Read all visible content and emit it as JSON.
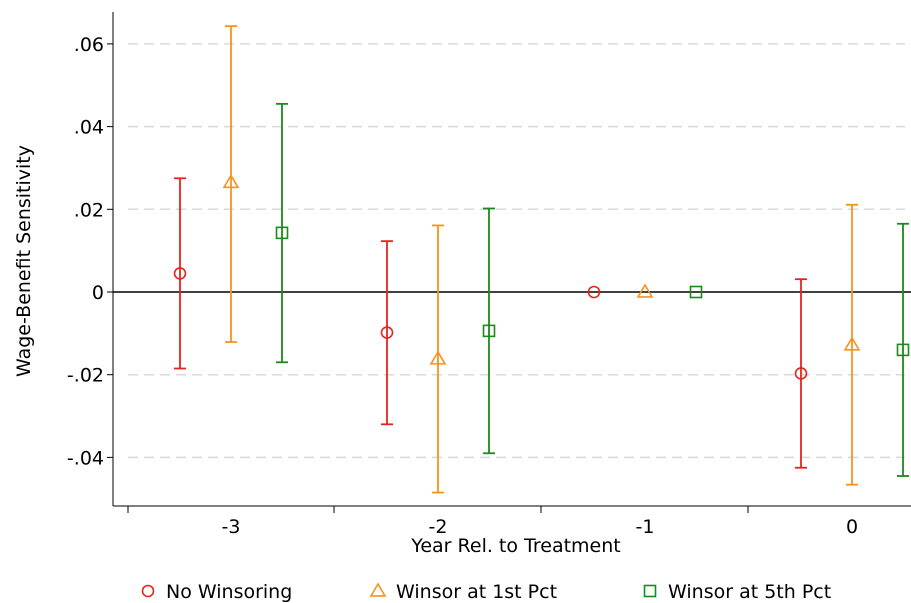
{
  "chart_data": {
    "type": "errorbar",
    "title": "",
    "xlabel": "Year Rel. to Treatment",
    "ylabel": "Wage-Benefit Sensitivity",
    "x_categories": [
      "-3",
      "-2",
      "-1",
      "0"
    ],
    "y_ticks": [
      {
        "value": 0.06,
        "label": ".06"
      },
      {
        "value": 0.04,
        "label": ".04"
      },
      {
        "value": 0.02,
        "label": ".02"
      },
      {
        "value": 0,
        "label": "0"
      },
      {
        "value": -0.02,
        "label": "-.02"
      },
      {
        "value": -0.04,
        "label": "-.04"
      }
    ],
    "ylim": [
      -0.051,
      0.069
    ],
    "grid": "horizontal dashed",
    "legend_position": "bottom",
    "series": [
      {
        "name": "No Winsoring",
        "marker": "circle",
        "color": "#e8221c",
        "points": [
          {
            "x": -3,
            "y": 0.0045,
            "lo": -0.0185,
            "hi": 0.0275
          },
          {
            "x": -2,
            "y": -0.0098,
            "lo": -0.032,
            "hi": 0.0123
          },
          {
            "x": -1,
            "y": 0.0,
            "lo": 0.0,
            "hi": 0.0
          },
          {
            "x": 0,
            "y": -0.0197,
            "lo": -0.0425,
            "hi": 0.0031
          }
        ]
      },
      {
        "name": "Winsor at 1st Pct",
        "marker": "triangle",
        "color": "#f7931d",
        "points": [
          {
            "x": -3,
            "y": 0.0265,
            "lo": -0.0121,
            "hi": 0.0643
          },
          {
            "x": -2,
            "y": -0.0162,
            "lo": -0.0485,
            "hi": 0.0161
          },
          {
            "x": -1,
            "y": 0.0,
            "lo": 0.0,
            "hi": 0.0
          },
          {
            "x": 0,
            "y": -0.0128,
            "lo": -0.0466,
            "hi": 0.0211
          }
        ]
      },
      {
        "name": "Winsor at 5th Pct",
        "marker": "square",
        "color": "#1a8a1a",
        "points": [
          {
            "x": -3,
            "y": 0.0143,
            "lo": -0.017,
            "hi": 0.0455
          },
          {
            "x": -2,
            "y": -0.0094,
            "lo": -0.039,
            "hi": 0.0202
          },
          {
            "x": -1,
            "y": 0.0,
            "lo": 0.0,
            "hi": 0.0
          },
          {
            "x": 0,
            "y": -0.014,
            "lo": -0.0445,
            "hi": 0.0165
          }
        ]
      }
    ]
  }
}
